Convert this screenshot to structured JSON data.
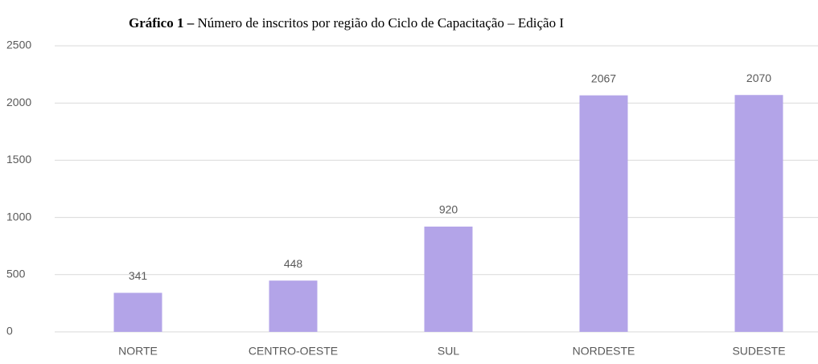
{
  "chart_data": {
    "type": "bar",
    "title_label": "Gráfico 1 –",
    "title": "Número de inscritos por região do Ciclo de Capacitação – Edição I",
    "categories": [
      "NORTE",
      "CENTRO-OESTE",
      "SUL",
      "NORDESTE",
      "SUDESTE"
    ],
    "values": [
      341,
      448,
      920,
      2067,
      2070
    ],
    "color": "#b3a4e8",
    "ylim": [
      0,
      2500
    ],
    "yticks": [
      0,
      500,
      1000,
      1500,
      2000,
      2500
    ],
    "grid": true
  }
}
